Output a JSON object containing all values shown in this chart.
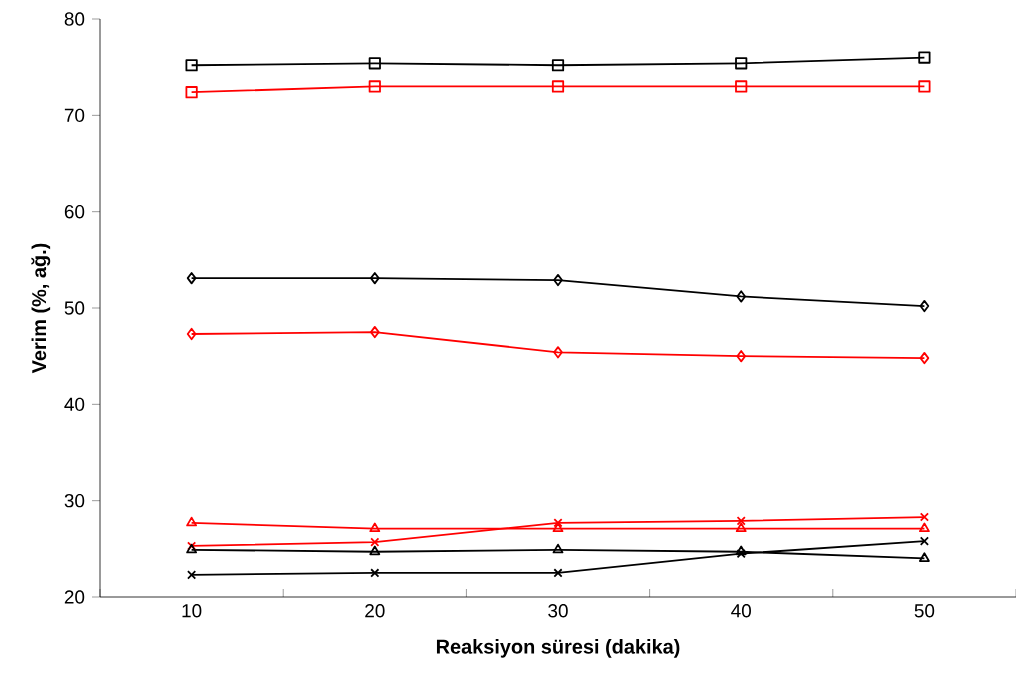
{
  "chart_data": {
    "type": "line",
    "xlabel": "Reaksiyon süresi (dakika)",
    "ylabel": "Verim (%, ağ.)",
    "categories": [
      "10",
      "20",
      "30",
      "40",
      "50"
    ],
    "ylim": [
      20,
      80
    ],
    "yticks": [
      20,
      30,
      40,
      50,
      60,
      70,
      80
    ],
    "grid": false,
    "series": [
      {
        "color": "#000000",
        "marker": "square",
        "values": [
          75.2,
          75.4,
          75.2,
          75.4,
          76.0
        ]
      },
      {
        "color": "#ff0000",
        "marker": "square",
        "values": [
          72.4,
          73.0,
          73.0,
          73.0,
          73.0
        ]
      },
      {
        "color": "#000000",
        "marker": "diamond",
        "values": [
          53.1,
          53.1,
          52.9,
          51.2,
          50.2
        ]
      },
      {
        "color": "#ff0000",
        "marker": "diamond",
        "values": [
          47.3,
          47.5,
          45.4,
          45.0,
          44.8
        ]
      },
      {
        "color": "#ff0000",
        "marker": "triangle",
        "values": [
          27.7,
          27.1,
          27.1,
          27.1,
          27.1
        ]
      },
      {
        "color": "#ff0000",
        "marker": "cross",
        "values": [
          25.3,
          25.7,
          27.7,
          27.9,
          28.3
        ]
      },
      {
        "color": "#000000",
        "marker": "triangle",
        "values": [
          24.9,
          24.7,
          24.9,
          24.7,
          24.0
        ]
      },
      {
        "color": "#000000",
        "marker": "cross",
        "values": [
          22.3,
          22.5,
          22.5,
          24.5,
          25.8
        ]
      }
    ]
  }
}
